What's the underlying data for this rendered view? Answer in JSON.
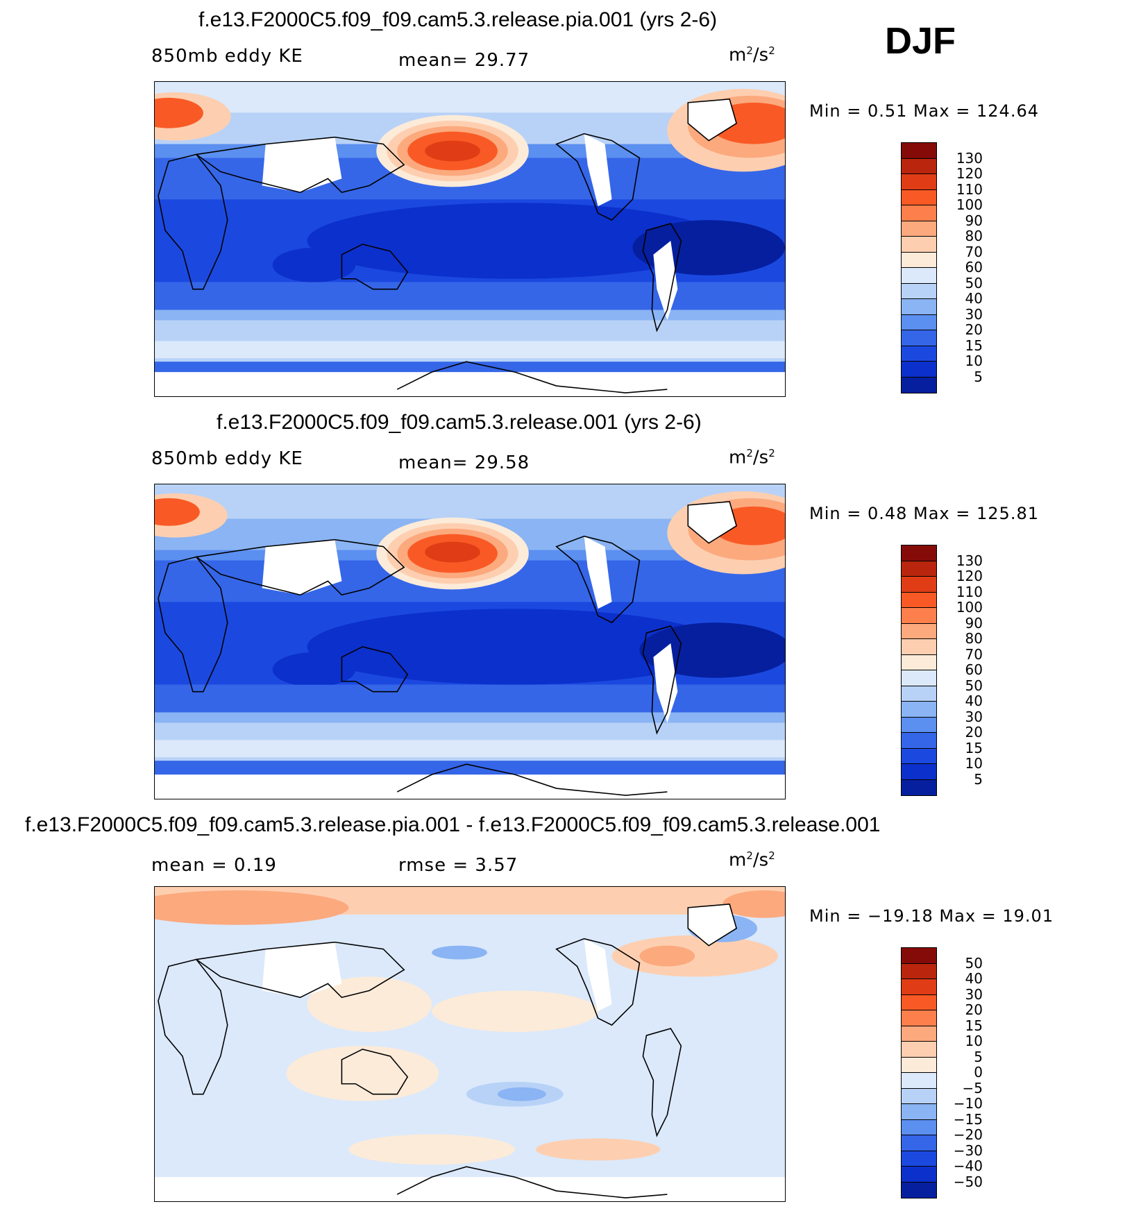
{
  "season": "DJF",
  "panels": [
    {
      "title": "f.e13.F2000C5.f09_f09.cam5.3.release.pia.001 (yrs 2-6)",
      "left_label": "850mb eddy KE",
      "mean_text": "mean=   29.77",
      "units": "m",
      "units_exp": "2",
      "units_den": "/s",
      "min_max": "Min =    0.51  Max  =  124.64",
      "colorbar": {
        "levels": [
          "130",
          "120",
          "110",
          "100",
          "90",
          "80",
          "70",
          "60",
          "50",
          "40",
          "30",
          "20",
          "15",
          "10",
          "5"
        ],
        "colors": [
          "#850b09",
          "#b9260d",
          "#e03d16",
          "#f95a25",
          "#fd7f4c",
          "#fca97e",
          "#fdcfb0",
          "#fcebd9",
          "#dbe9fb",
          "#b8d2f7",
          "#8ab4f3",
          "#5b8ff0",
          "#3566e8",
          "#1b49e0",
          "#0c30cc",
          "#051f9e"
        ]
      }
    },
    {
      "title": "f.e13.F2000C5.f09_f09.cam5.3.release.001 (yrs 2-6)",
      "left_label": "850mb eddy KE",
      "mean_text": "mean=   29.58",
      "units": "m",
      "units_exp": "2",
      "units_den": "/s",
      "min_max": "Min =    0.48  Max  =  125.81",
      "colorbar": {
        "levels": [
          "130",
          "120",
          "110",
          "100",
          "90",
          "80",
          "70",
          "60",
          "50",
          "40",
          "30",
          "20",
          "15",
          "10",
          "5"
        ],
        "colors": [
          "#850b09",
          "#b9260d",
          "#e03d16",
          "#f95a25",
          "#fd7f4c",
          "#fca97e",
          "#fdcfb0",
          "#fcebd9",
          "#dbe9fb",
          "#b8d2f7",
          "#8ab4f3",
          "#5b8ff0",
          "#3566e8",
          "#1b49e0",
          "#0c30cc",
          "#051f9e"
        ]
      }
    },
    {
      "title": "f.e13.F2000C5.f09_f09.cam5.3.release.pia.001 - f.e13.F2000C5.f09_f09.cam5.3.release.001",
      "left_label": "mean =    0.19",
      "mean_text": "rmse =    3.57",
      "units": "m",
      "units_exp": "2",
      "units_den": "/s",
      "min_max": "Min = −19.18  Max  =   19.01",
      "colorbar": {
        "levels": [
          "50",
          "40",
          "30",
          "20",
          "15",
          "10",
          "5",
          "0",
          "−5",
          "−10",
          "−15",
          "−20",
          "−30",
          "−40",
          "−50"
        ],
        "colors": [
          "#850b09",
          "#b9260d",
          "#e03d16",
          "#f95a25",
          "#fd7f4c",
          "#fca97e",
          "#fdcfb0",
          "#fcebd9",
          "#dbe9fb",
          "#b8d2f7",
          "#8ab4f3",
          "#5b8ff0",
          "#3566e8",
          "#1b49e0",
          "#0c30cc",
          "#051f9e"
        ]
      }
    }
  ]
}
